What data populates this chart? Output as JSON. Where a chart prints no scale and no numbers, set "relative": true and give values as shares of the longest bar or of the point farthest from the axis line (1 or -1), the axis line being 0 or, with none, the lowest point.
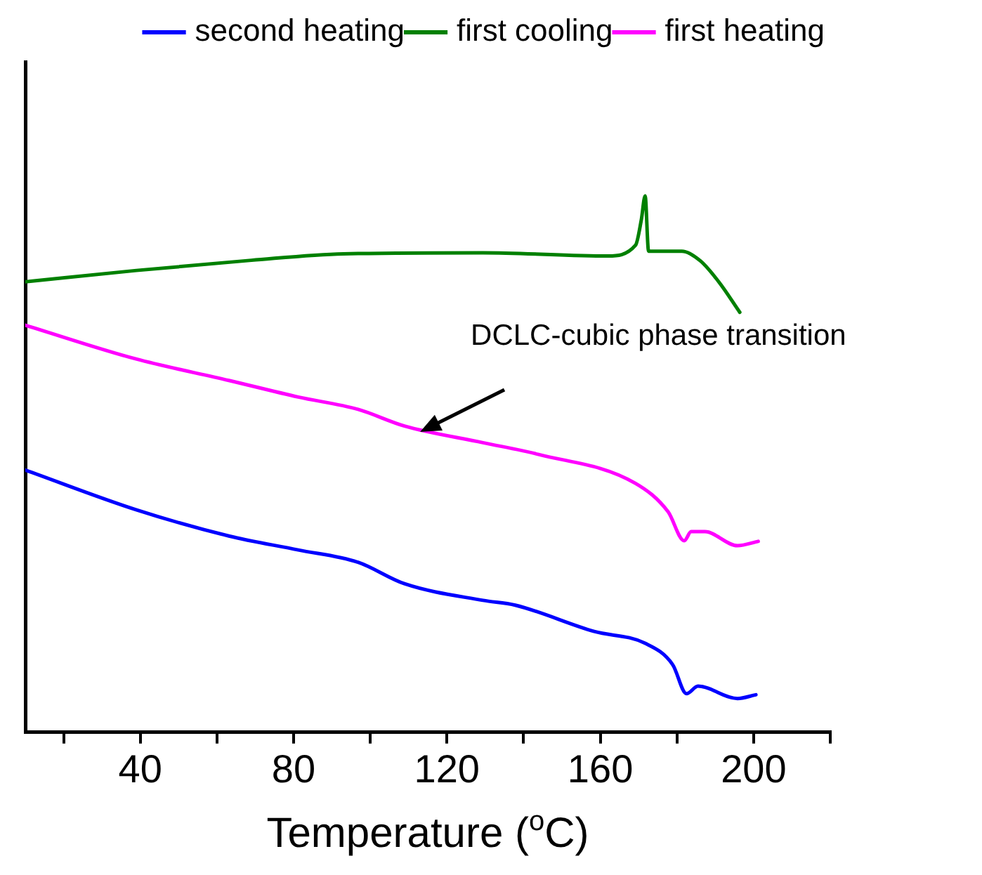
{
  "chart_data": {
    "type": "line",
    "relative": true,
    "xlabel": "Temperature ($^{o}$C)",
    "xlim": [
      10,
      220
    ],
    "xticks": [
      {
        "value": 20,
        "label": null
      },
      40,
      {
        "value": 60,
        "label": null
      },
      80,
      {
        "value": 100,
        "label": null
      },
      120,
      {
        "value": 140,
        "label": null
      },
      160,
      {
        "value": 180,
        "label": null
      },
      200,
      {
        "value": 220,
        "label": null
      }
    ],
    "grid": false,
    "legend": "top right",
    "marker": "none",
    "line_style": "solid",
    "annotations": [
      {
        "text": "DCLC-cubic phase transition",
        "x": 113,
        "y": 0.56
      }
    ],
    "series": [
      {
        "name": "second heating",
        "color": "#0000ff",
        "x": [
          10,
          38.9,
          63.1,
          81.2,
          96.8,
          108.9,
          129.4,
          137.8,
          158.4,
          171.7,
          178.9,
          182.5,
          185.5,
          195.8,
          200.6
        ],
        "values": [
          0.489,
          0.415,
          0.366,
          0.34,
          0.317,
          0.277,
          0.246,
          0.237,
          0.188,
          0.166,
          0.126,
          0.072,
          0.086,
          0.063,
          0.07
        ]
      },
      {
        "name": "first cooling",
        "color": "#008000",
        "x": [
          10,
          39,
          69,
          93,
          129.4,
          162,
          169.2,
          170.7,
          171.7,
          172.6,
          181.3,
          186.1,
          191,
          196.4
        ],
        "values": [
          0.84,
          0.861,
          0.88,
          0.892,
          0.894,
          0.888,
          0.908,
          0.955,
          1,
          0.897,
          0.897,
          0.879,
          0.839,
          0.783
        ]
      },
      {
        "name": "first heating",
        "color": "#ff00ff",
        "x": [
          10,
          38.9,
          63.1,
          81.2,
          96.8,
          108.9,
          129.4,
          143.9,
          169.2,
          177.7,
          181.9,
          183.7,
          187.3,
          195.8,
          201.2
        ],
        "values": [
          0.759,
          0.696,
          0.656,
          0.625,
          0.602,
          0.571,
          0.54,
          0.518,
          0.464,
          0.411,
          0.357,
          0.374,
          0.374,
          0.348,
          0.356
        ]
      }
    ]
  }
}
